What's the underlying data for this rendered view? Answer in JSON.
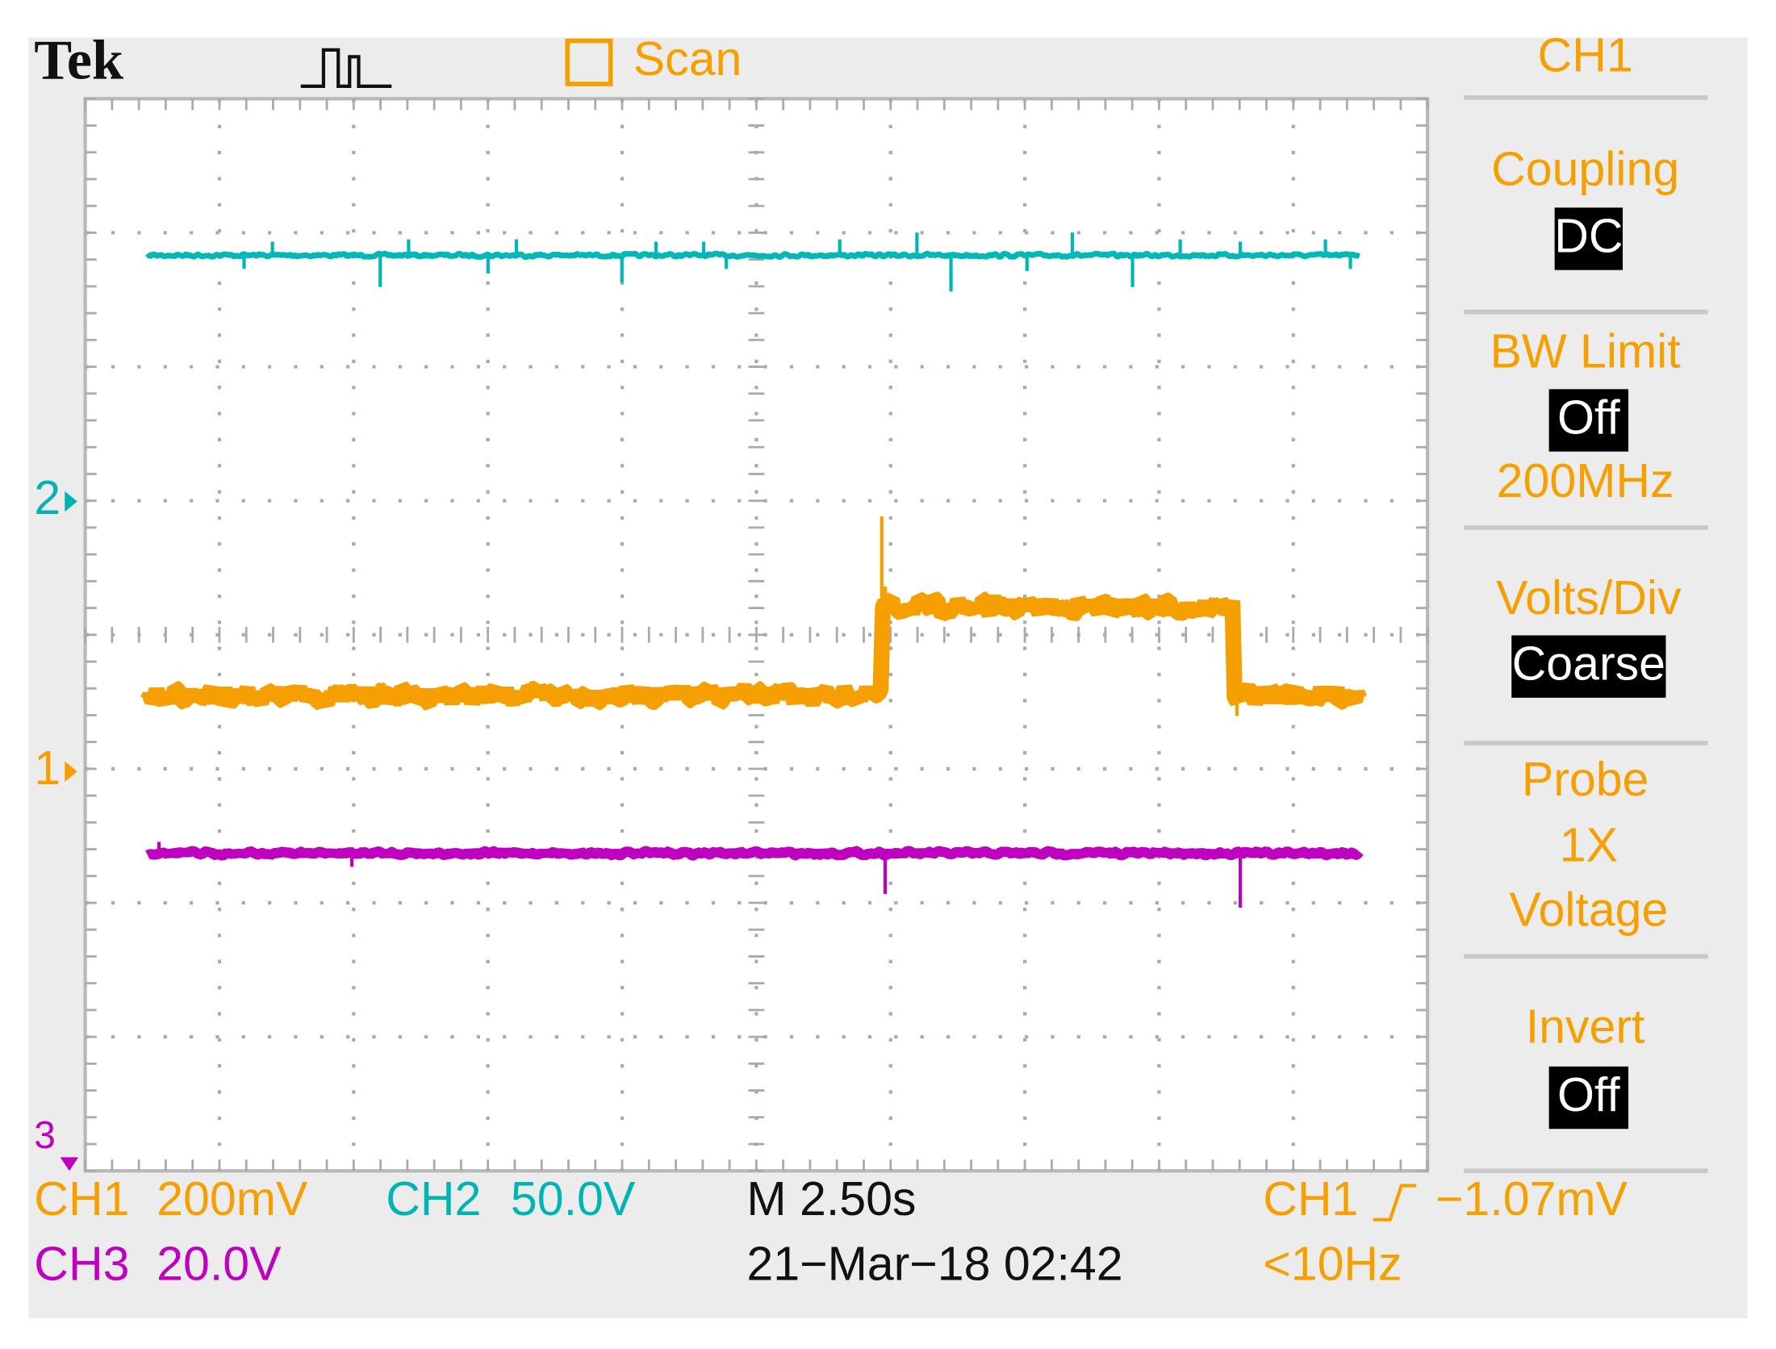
{
  "header": {
    "brand": "Tek",
    "mode": "Scan"
  },
  "menu": {
    "title": "CH1",
    "items": [
      {
        "label": "Coupling",
        "value": "DC"
      },
      {
        "label": "BW Limit",
        "value": "Off",
        "note": "200MHz"
      },
      {
        "label": "Volts/Div",
        "value": "Coarse"
      },
      {
        "label": "Probe",
        "value": "1X",
        "note": "Voltage"
      },
      {
        "label": "Invert",
        "value": "Off"
      }
    ]
  },
  "markers": [
    "2",
    "1",
    "3"
  ],
  "status": {
    "ch1_label": "CH1",
    "ch1_scale": "200mV",
    "ch2_label": "CH2",
    "ch2_scale": "50.0V",
    "ch3_label": "CH3",
    "ch3_scale": "20.0V",
    "timebase": "M 2.50s",
    "datetime": "21−Mar−18 02:42",
    "trigger_source": "CH1",
    "trigger_level": "−1.07mV",
    "trigger_freq": "<10Hz"
  }
}
